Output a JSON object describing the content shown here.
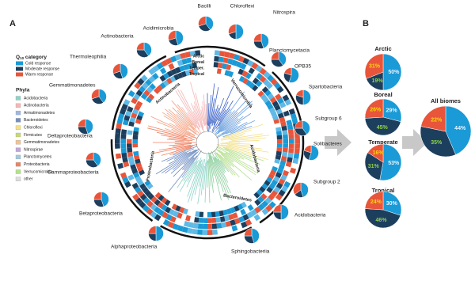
{
  "panel_a": {
    "label": "A",
    "legend": {
      "title_main": "Q",
      "title_sub": "10",
      "title_rest": " category",
      "items": [
        {
          "name": "Cold response",
          "color": "#1a9ad6"
        },
        {
          "name": "Moderate response",
          "color": "#1d3f5e"
        },
        {
          "name": "Warm response",
          "color": "#e8553a"
        }
      ]
    },
    "phyla": {
      "title": "Phyla",
      "items": [
        {
          "name": "Acidobacteria",
          "color": "#8dd3c7"
        },
        {
          "name": "Actinobacteria",
          "color": "#f4b6b6"
        },
        {
          "name": "Armatimonadetes",
          "color": "#9fb7e0"
        },
        {
          "name": "Bacteroidetes",
          "color": "#6f8fc4"
        },
        {
          "name": "Chloroflexi",
          "color": "#f3e08a"
        },
        {
          "name": "Firmicutes",
          "color": "#c8d96f"
        },
        {
          "name": "Gemmatimonadetes",
          "color": "#f6c28b"
        },
        {
          "name": "Nitrospirae",
          "color": "#bfa6d8"
        },
        {
          "name": "Planctomycetes",
          "color": "#9ecae1"
        },
        {
          "name": "Proteobacteria",
          "color": "#f08060"
        },
        {
          "name": "Verrucomicrobia",
          "color": "#b5e08c"
        },
        {
          "name": "other",
          "color": "#dddddd"
        }
      ]
    },
    "biome_rings": [
      "Arctic",
      "Boreal",
      "Temper.",
      "Tropical"
    ],
    "clades": [
      "Actinobacteria",
      "Verrucomicrobia",
      "Acidobacteria",
      "Bacteroidetes",
      "Proteobacteria"
    ],
    "taxa": [
      {
        "name": "Acidimicrobia",
        "values": [
          45,
          25,
          30
        ]
      },
      {
        "name": "Bacilli",
        "values": [
          40,
          30,
          30
        ]
      },
      {
        "name": "Chloroflexi",
        "values": [
          50,
          20,
          30
        ]
      },
      {
        "name": "Nitrospira",
        "values": [
          45,
          30,
          25
        ]
      },
      {
        "name": "Planctomycetacia",
        "values": [
          40,
          35,
          25
        ]
      },
      {
        "name": "OPB35",
        "values": [
          55,
          25,
          20
        ]
      },
      {
        "name": "Spartobacteria",
        "values": [
          50,
          30,
          20
        ]
      },
      {
        "name": "Subgroup 6",
        "values": [
          40,
          35,
          25
        ]
      },
      {
        "name": "Solibacteres",
        "values": [
          55,
          25,
          20
        ]
      },
      {
        "name": "Subgroup 2",
        "values": [
          45,
          20,
          35
        ]
      },
      {
        "name": "Acidobacteria",
        "values": [
          50,
          25,
          25
        ]
      },
      {
        "name": "Sphingobacteriia",
        "values": [
          45,
          30,
          25
        ]
      },
      {
        "name": "Alphaproteobacteria",
        "values": [
          50,
          25,
          25
        ]
      },
      {
        "name": "Betaproteobacteria",
        "values": [
          45,
          30,
          25
        ]
      },
      {
        "name": "Gammaproteobacteria",
        "values": [
          40,
          35,
          25
        ]
      },
      {
        "name": "Deltaproteobacteria",
        "values": [
          45,
          30,
          25
        ]
      },
      {
        "name": "Gemmatimonadetes",
        "values": [
          40,
          30,
          30
        ]
      },
      {
        "name": "Thermoleophilia",
        "values": [
          45,
          25,
          30
        ]
      },
      {
        "name": "Actinobacteria",
        "values": [
          40,
          35,
          25
        ]
      }
    ]
  },
  "panel_b": {
    "label": "B"
  },
  "chart_data": [
    {
      "type": "pie",
      "title": "Arctic",
      "values": [
        50,
        19,
        31
      ],
      "value_labels": [
        "50%",
        "19%",
        "31%"
      ],
      "colors": [
        "#1a9ad6",
        "#1d3f5e",
        "#e8553a"
      ]
    },
    {
      "type": "pie",
      "title": "Boreal",
      "values": [
        29,
        45,
        26
      ],
      "value_labels": [
        "29%",
        "45%",
        "26%"
      ],
      "colors": [
        "#1a9ad6",
        "#1d3f5e",
        "#e8553a"
      ]
    },
    {
      "type": "pie",
      "title": "Temperate",
      "values": [
        53,
        31,
        16
      ],
      "value_labels": [
        "53%",
        "31%",
        "16%"
      ],
      "colors": [
        "#1a9ad6",
        "#1d3f5e",
        "#e8553a"
      ]
    },
    {
      "type": "pie",
      "title": "Tropical",
      "values": [
        30,
        46,
        24
      ],
      "value_labels": [
        "30%",
        "46%",
        "24%"
      ],
      "colors": [
        "#1a9ad6",
        "#1d3f5e",
        "#e8553a"
      ]
    },
    {
      "type": "pie",
      "title": "All biomes",
      "values": [
        44,
        35,
        22
      ],
      "value_labels": [
        "44%",
        "35%",
        "22%"
      ],
      "colors": [
        "#1a9ad6",
        "#1d3f5e",
        "#e8553a"
      ]
    }
  ]
}
